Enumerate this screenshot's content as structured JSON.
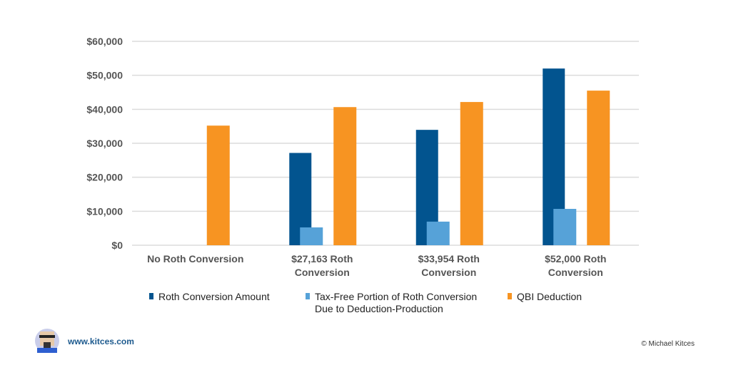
{
  "chart_data": {
    "type": "bar",
    "categories": [
      [
        "No Roth Conversion"
      ],
      [
        "$27,163 Roth",
        "Conversion"
      ],
      [
        "$33,954 Roth",
        "Conversion"
      ],
      [
        "$52,000 Roth",
        "Conversion"
      ]
    ],
    "series": [
      {
        "name": "Roth Conversion Amount",
        "color": "#02548F",
        "values": [
          0,
          27163,
          33954,
          52000
        ]
      },
      {
        "name": "Tax-Free Portion of Roth Conversion Due to Deduction-Production",
        "legend_lines": [
          "Tax-Free Portion of Roth Conversion",
          "Due to Deduction-Production"
        ],
        "color": "#56A2D8",
        "values": [
          0,
          5250,
          6950,
          10700
        ]
      },
      {
        "name": "QBI Deduction",
        "color": "#F79422",
        "values": [
          35200,
          40650,
          42150,
          45500
        ]
      }
    ],
    "ylim": [
      0,
      60000
    ],
    "yticks": [
      0,
      10000,
      20000,
      30000,
      40000,
      50000,
      60000
    ],
    "ytick_labels": [
      "$0",
      "$10,000",
      "$20,000",
      "$30,000",
      "$40,000",
      "$50,000",
      "$60,000"
    ],
    "grid": true,
    "legend": "bottom"
  },
  "footer": {
    "url": "www.kitces.com",
    "copyright": "© Michael Kitces"
  }
}
